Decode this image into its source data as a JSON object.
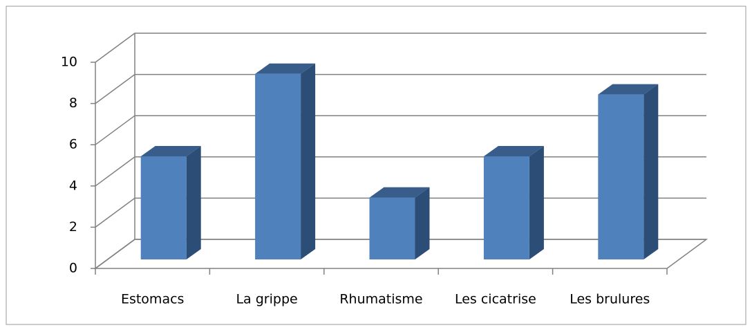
{
  "chart_data": {
    "type": "bar3d",
    "categories": [
      "Estomacs",
      "La grippe",
      "Rhumatisme",
      "Les cicatrise",
      "Les brulures"
    ],
    "values": [
      5,
      9,
      3,
      5,
      8
    ],
    "color": "#4f81bd",
    "ylim": [
      0,
      10
    ],
    "yticks": [
      0,
      2,
      4,
      6,
      8,
      10
    ],
    "grid": true
  }
}
